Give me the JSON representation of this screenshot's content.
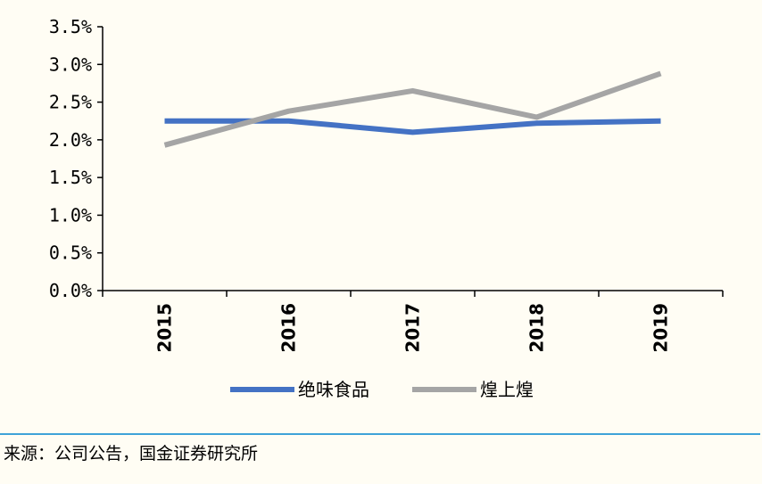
{
  "chart_data": {
    "type": "line",
    "title": "",
    "xlabel": "",
    "ylabel": "",
    "categories": [
      "2015",
      "2016",
      "2017",
      "2018",
      "2019"
    ],
    "y_ticks": [
      "0.0%",
      "0.5%",
      "1.0%",
      "1.5%",
      "2.0%",
      "2.5%",
      "3.0%",
      "3.5%"
    ],
    "ylim": [
      0,
      3.5
    ],
    "grid": false,
    "legend_position": "bottom",
    "series": [
      {
        "name": "绝味食品",
        "color": "#4472C4",
        "values": [
          2.25,
          2.25,
          2.1,
          2.22,
          2.25
        ]
      },
      {
        "name": "煌上煌",
        "color": "#A5A5A5",
        "values": [
          1.93,
          2.38,
          2.65,
          2.3,
          2.88
        ]
      }
    ]
  },
  "source": "来源：公司公告，国金证券研究所"
}
